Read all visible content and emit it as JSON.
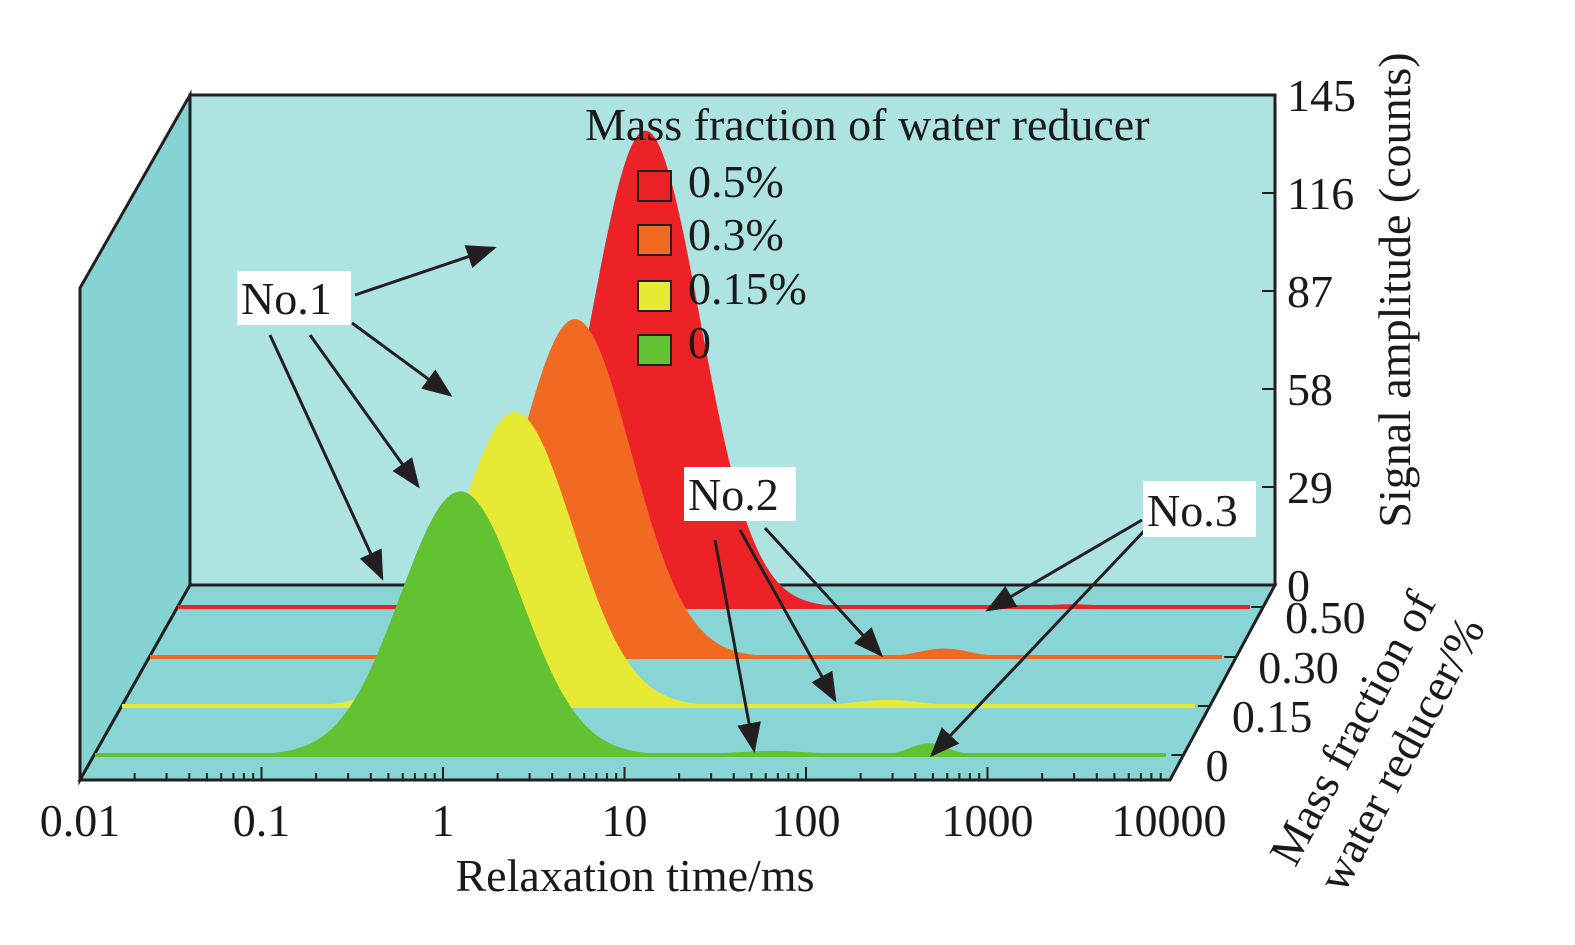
{
  "chart_data": {
    "type": "area",
    "projection": "3d-waterfall",
    "xlabel": "Relaxation time/ms",
    "ylabel": "Signal amplitude (counts)",
    "zlabel_line1": "Mass fraction of",
    "zlabel_line2": "water reducer/%",
    "x_scale": "log",
    "xlim": [
      0.01,
      10000
    ],
    "x_ticks": [
      "0.01",
      "0.1",
      "1",
      "10",
      "100",
      "1000",
      "10000"
    ],
    "ylim": [
      0,
      145
    ],
    "y_ticks": [
      "0",
      "29",
      "58",
      "87",
      "116",
      "145"
    ],
    "z_ticks": [
      "0.50",
      "0.30",
      "0.15",
      "0"
    ],
    "legend": {
      "title": "Mass fraction of water reducer",
      "position": "top-right",
      "entries": [
        {
          "label": "0.5%",
          "color": "#ec2227"
        },
        {
          "label": "0.3%",
          "color": "#f26a22"
        },
        {
          "label": "0.15%",
          "color": "#e6ea34"
        },
        {
          "label": "0",
          "color": "#62c232"
        }
      ]
    },
    "series": [
      {
        "name": "0.5%",
        "color": "#ec2227",
        "peaks": [
          {
            "center": 4.0,
            "amplitude": 141,
            "sigma_decades": 0.3
          },
          {
            "center": 900,
            "amplitude": 0.8,
            "sigma_decades": 0.15
          }
        ]
      },
      {
        "name": "0.3%",
        "color": "#f26a22",
        "peaks": [
          {
            "center": 2.3,
            "amplitude": 100,
            "sigma_decades": 0.31
          },
          {
            "center": 250,
            "amplitude": 2.5,
            "sigma_decades": 0.14
          }
        ]
      },
      {
        "name": "0.15%",
        "color": "#e6ea34",
        "peaks": [
          {
            "center": 1.5,
            "amplitude": 87,
            "sigma_decades": 0.32
          },
          {
            "center": 170,
            "amplitude": 1.8,
            "sigma_decades": 0.18
          }
        ]
      },
      {
        "name": "0",
        "color": "#62c232",
        "peaks": [
          {
            "center": 1.05,
            "amplitude": 78,
            "sigma_decades": 0.33
          },
          {
            "center": 55,
            "amplitude": 1.2,
            "sigma_decades": 0.22
          },
          {
            "center": 400,
            "amplitude": 3.5,
            "sigma_decades": 0.1
          }
        ]
      }
    ],
    "annotations": [
      "No.1",
      "No.2",
      "No.3"
    ]
  },
  "colors": {
    "back_wall": "#ade3e1",
    "side_wall": "#86d3d4",
    "floor": "#89d5d6",
    "axis": "#231f20"
  }
}
